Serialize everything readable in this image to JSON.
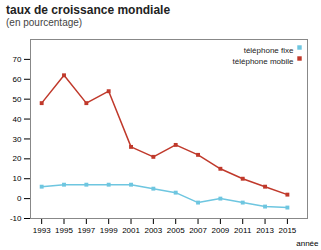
{
  "chart_data": {
    "type": "line",
    "title": "taux de croissance mondiale",
    "subtitle": "(en pourcentage)",
    "x_label": "année",
    "x": [
      1993,
      1995,
      1997,
      1999,
      2001,
      2003,
      2005,
      2007,
      2009,
      2011,
      2013,
      2015
    ],
    "series": [
      {
        "name": "téléphone fixe",
        "color": "#6ec6e0",
        "values": [
          6,
          7,
          7,
          7,
          7,
          5,
          3,
          -2,
          0,
          -2,
          -4,
          -4.5
        ]
      },
      {
        "name": "téléphone mobile",
        "color": "#c0392b",
        "values": [
          48,
          62,
          48,
          54,
          26,
          21,
          27,
          22,
          15,
          10,
          6,
          2
        ]
      }
    ],
    "xlim": [
      1992.0,
      2016.8
    ],
    "xticks": [
      1993,
      1995,
      1997,
      1999,
      2001,
      2003,
      2005,
      2007,
      2009,
      2011,
      2013,
      2015
    ],
    "ylim": [
      -10,
      80
    ],
    "yticks": [
      -10,
      0,
      10,
      20,
      30,
      40,
      50,
      60,
      70
    ],
    "marker": "square",
    "grid": false,
    "legend": "upper right"
  }
}
